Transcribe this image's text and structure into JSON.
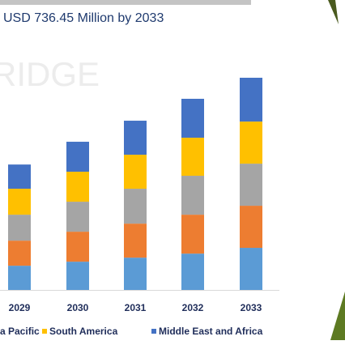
{
  "chart_data": {
    "type": "stacked-bar",
    "title": "USD 736.45 Million by 2033",
    "watermark": "RIDGE",
    "categories": [
      "2029",
      "2030",
      "2031",
      "2032",
      "2033"
    ],
    "series": [
      {
        "color": "#5b9bd5",
        "values": [
          84,
          98,
          112,
          126,
          146
        ]
      },
      {
        "color": "#ed7d31",
        "values": [
          87,
          104,
          118,
          135,
          146
        ]
      },
      {
        "name": "a Pacific",
        "color": "#a5a5a5",
        "values": [
          90,
          104,
          121,
          135,
          146
        ]
      },
      {
        "name": "South America",
        "color": "#ffc000",
        "values": [
          90,
          104,
          118,
          132,
          146
        ]
      },
      {
        "name": "Middle East and Africa",
        "color": "#4472c4",
        "values": [
          84,
          104,
          118,
          135,
          152
        ]
      }
    ]
  }
}
